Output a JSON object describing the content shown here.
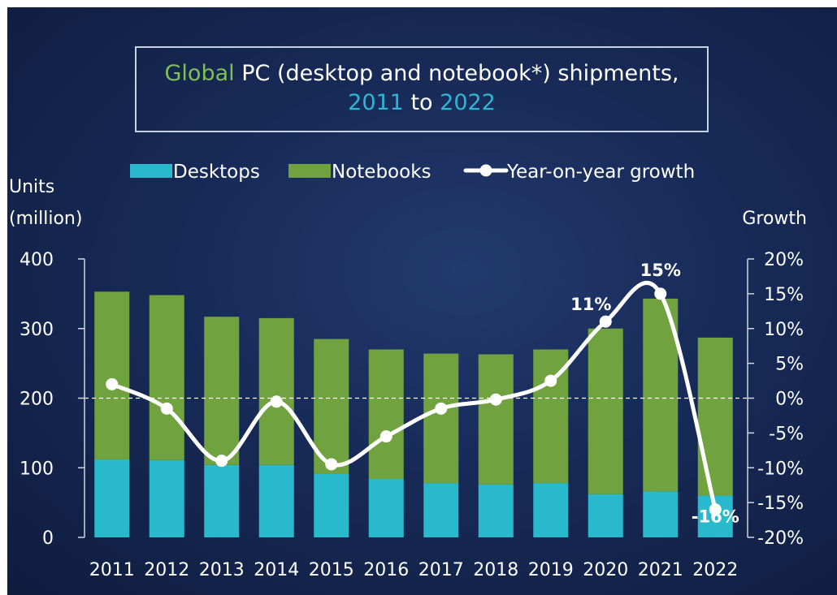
{
  "title": {
    "part1_colored": "Global",
    "part1_rest": " PC (desktop and notebook*) shipments,",
    "part2_year_start": "2011",
    "part2_to": " to ",
    "part2_year_end": "2022",
    "color_green": "#7fbf5a",
    "color_blue": "#2fb6d5"
  },
  "chart_data": {
    "type": "bar",
    "stacked": true,
    "categories": [
      "2011",
      "2012",
      "2013",
      "2014",
      "2015",
      "2016",
      "2017",
      "2018",
      "2019",
      "2020",
      "2021",
      "2022"
    ],
    "series": [
      {
        "name": "Desktops",
        "kind": "bar",
        "color": "#29b9cc",
        "values": [
          112,
          111,
          104,
          104,
          91,
          84,
          78,
          76,
          78,
          62,
          66,
          60
        ]
      },
      {
        "name": "Notebooks",
        "kind": "bar",
        "color": "#70a33f",
        "values": [
          241,
          237,
          213,
          211,
          194,
          186,
          186,
          187,
          192,
          238,
          277,
          227
        ]
      },
      {
        "name": "Year-on-year growth",
        "kind": "line",
        "axis": "right",
        "color": "#ffffff",
        "values": [
          2,
          -1.5,
          -9,
          -0.5,
          -9.5,
          -5.5,
          -1.5,
          -0.2,
          2.5,
          11,
          15,
          -16
        ]
      }
    ],
    "ylabel": "Units (million)",
    "ylabel_lines": [
      "Units",
      "(million)"
    ],
    "ylim": [
      0,
      400
    ],
    "yticks": [
      "0",
      "100",
      "200",
      "300",
      "400"
    ],
    "y2label": "Growth",
    "y2lim": [
      -20,
      20
    ],
    "y2ticks": [
      "-20%",
      "-15%",
      "-10%",
      "-5%",
      "0%",
      "5%",
      "10%",
      "15%",
      "20%"
    ],
    "annotations": [
      {
        "category": "2020",
        "text": "11%"
      },
      {
        "category": "2021",
        "text": "15%"
      },
      {
        "category": "2022",
        "text": "-16%"
      }
    ],
    "zero_growth_line": "dashed",
    "legend_position": "top"
  }
}
